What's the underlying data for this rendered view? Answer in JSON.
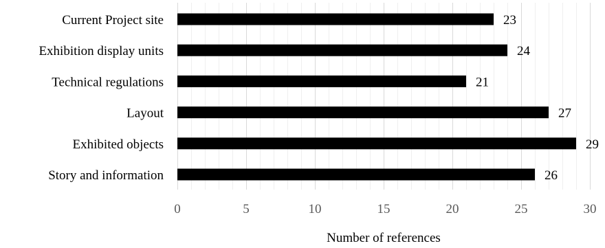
{
  "chart_data": {
    "type": "bar",
    "orientation": "horizontal",
    "categories": [
      "Current Project site",
      "Exhibition display units",
      "Technical regulations",
      "Layout",
      "Exhibited objects",
      "Story and information"
    ],
    "values": [
      23,
      24,
      21,
      27,
      29,
      26
    ],
    "data_labels": [
      "23",
      "24",
      "21",
      "27",
      "29",
      "26"
    ],
    "xlabel": "Number of references",
    "ylabel": "",
    "title": "",
    "xlim": [
      0,
      30
    ],
    "x_ticks": [
      0,
      5,
      10,
      15,
      20,
      25,
      30
    ],
    "x_tick_labels": [
      "0",
      "5",
      "10",
      "15",
      "20",
      "25",
      "30"
    ],
    "grid": true,
    "minor_grid": true,
    "legend": "none",
    "bar_color": "#000000"
  }
}
